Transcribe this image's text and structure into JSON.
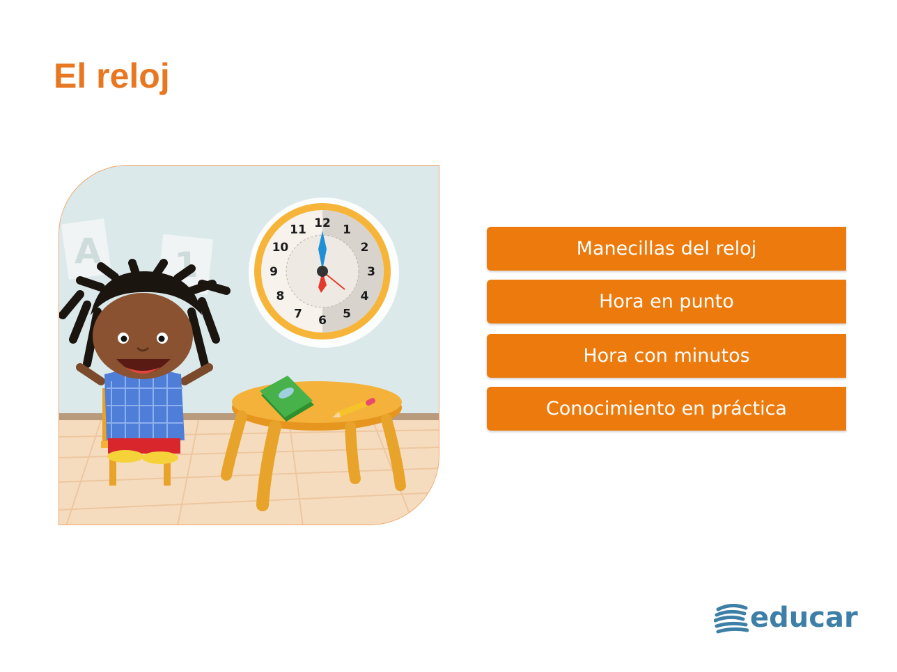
{
  "title": "El reloj",
  "menu": [
    {
      "label": "Manecillas del reloj"
    },
    {
      "label": "Hora en punto"
    },
    {
      "label": "Hora con minutos"
    },
    {
      "label": "Conocimiento en práctica"
    }
  ],
  "illustration": {
    "wall_letters": [
      "A",
      "1"
    ],
    "clock_numbers": [
      "12",
      "1",
      "2",
      "3",
      "4",
      "5",
      "6",
      "7",
      "8",
      "9",
      "10",
      "11"
    ]
  },
  "logo": {
    "text": "educar",
    "icon": "educar-logo-icon"
  },
  "colors": {
    "accent": "#ec7a0d",
    "title": "#e87722",
    "logo": "#3d7fa6"
  }
}
